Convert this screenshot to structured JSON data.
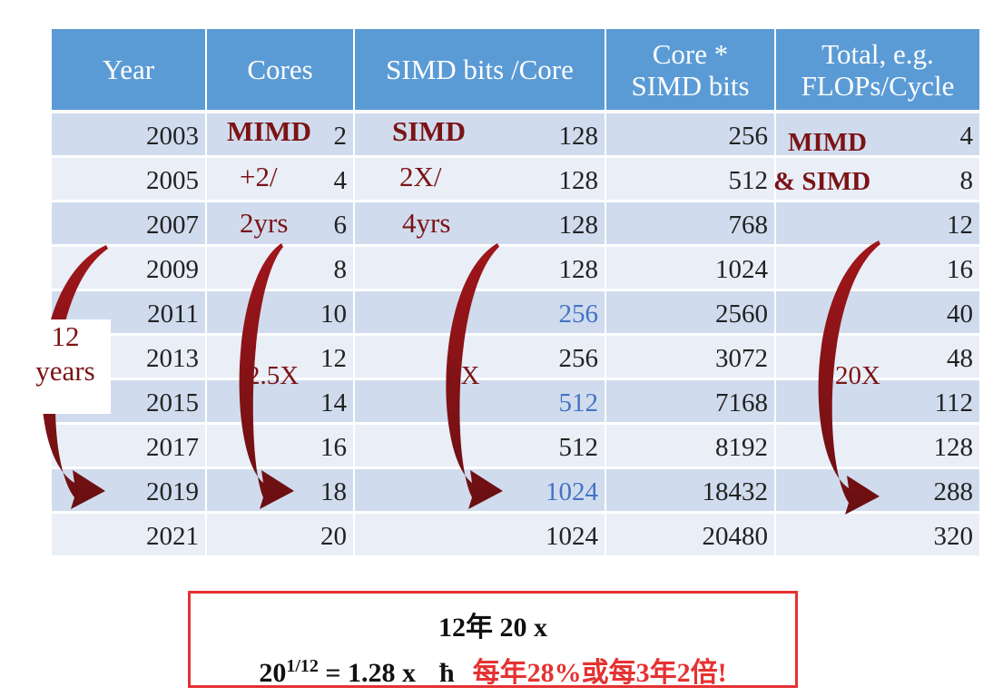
{
  "table": {
    "headers": [
      "Year",
      "Cores",
      "SIMD bits /Core",
      "Core *\nSIMD bits",
      "Total, e.g.\nFLOPs/Cycle"
    ],
    "rows": [
      {
        "year": "2003",
        "cores": "2",
        "simd": "128",
        "core_simd": "256",
        "total": "4",
        "simd_blue": false
      },
      {
        "year": "2005",
        "cores": "4",
        "simd": "128",
        "core_simd": "512",
        "total": "8",
        "simd_blue": false
      },
      {
        "year": "2007",
        "cores": "6",
        "simd": "128",
        "core_simd": "768",
        "total": "12",
        "simd_blue": false
      },
      {
        "year": "2009",
        "cores": "8",
        "simd": "128",
        "core_simd": "1024",
        "total": "16",
        "simd_blue": false
      },
      {
        "year": "2011",
        "cores": "10",
        "simd": "256",
        "core_simd": "2560",
        "total": "40",
        "simd_blue": true
      },
      {
        "year": "2013",
        "cores": "12",
        "simd": "256",
        "core_simd": "3072",
        "total": "48",
        "simd_blue": false
      },
      {
        "year": "2015",
        "cores": "14",
        "simd": "512",
        "core_simd": "7168",
        "total": "112",
        "simd_blue": true
      },
      {
        "year": "2017",
        "cores": "16",
        "simd": "512",
        "core_simd": "8192",
        "total": "128",
        "simd_blue": false
      },
      {
        "year": "2019",
        "cores": "18",
        "simd": "1024",
        "core_simd": "18432",
        "total": "288",
        "simd_blue": true
      },
      {
        "year": "2021",
        "cores": "20",
        "simd": "1024",
        "core_simd": "20480",
        "total": "320",
        "simd_blue": false
      }
    ]
  },
  "annotations": {
    "mimd_label": "MIMD",
    "mimd_rate_1": "+2/",
    "mimd_rate_2": "2yrs",
    "simd_label": "SIMD",
    "simd_rate_1": "2X/",
    "simd_rate_2": "4yrs",
    "both_label_1": "MIMD",
    "both_label_2": "& SIMD",
    "years_1": "12",
    "years_2": "years",
    "cores_growth": "2.5X",
    "simd_growth": "8X",
    "total_growth": "20X"
  },
  "summary": {
    "line1": "12年 20 x",
    "base": "20",
    "exponent": "1/12",
    "result": " = 1.28 x",
    "symbol": "ħ",
    "conclusion": "每年28%或每3年2倍!"
  },
  "colors": {
    "header_bg": "#5b9bd5",
    "row_dark": "#d0dcee",
    "row_light": "#e9eef7",
    "annotation": "#7b1315",
    "highlight_blue": "#4472c4",
    "summary_red": "#e53232"
  }
}
